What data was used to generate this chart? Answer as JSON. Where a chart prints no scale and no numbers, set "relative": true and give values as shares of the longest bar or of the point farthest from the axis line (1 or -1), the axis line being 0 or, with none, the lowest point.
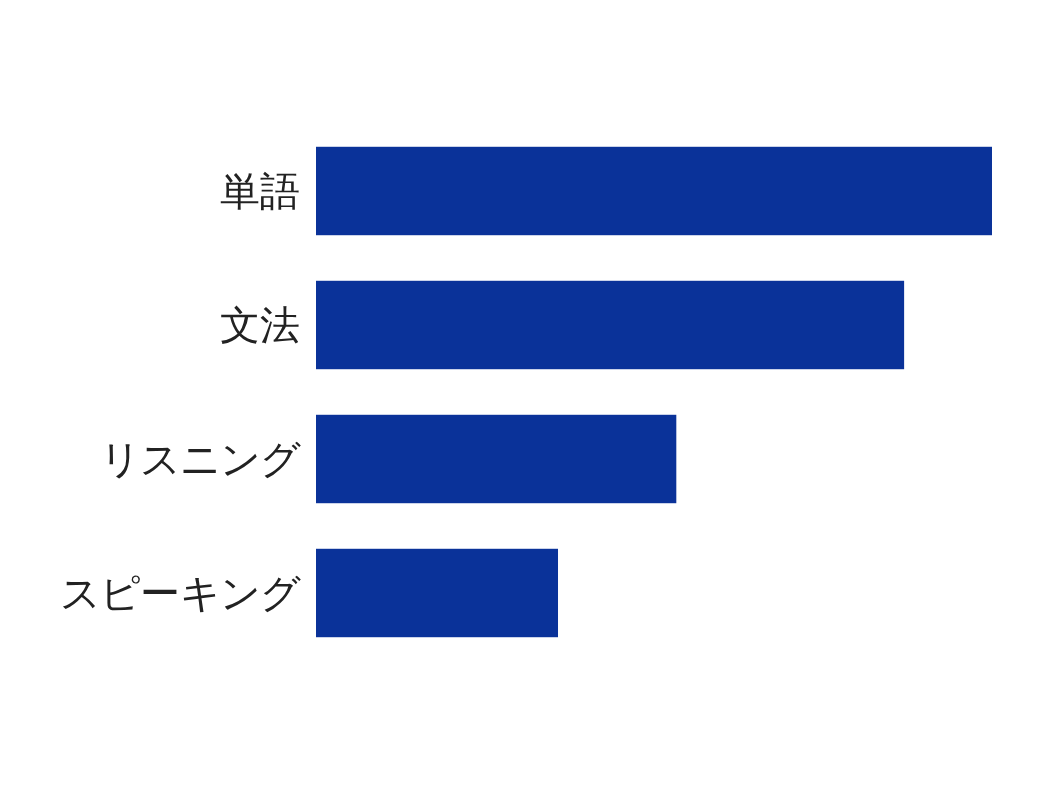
{
  "chart_data": {
    "type": "bar",
    "orientation": "horizontal",
    "relative": true,
    "categories": [
      "単語",
      "文法",
      "リスニング",
      "スピーキング"
    ],
    "values": [
      1,
      0.87,
      0.533,
      0.358
    ],
    "color": "#0a3299"
  }
}
